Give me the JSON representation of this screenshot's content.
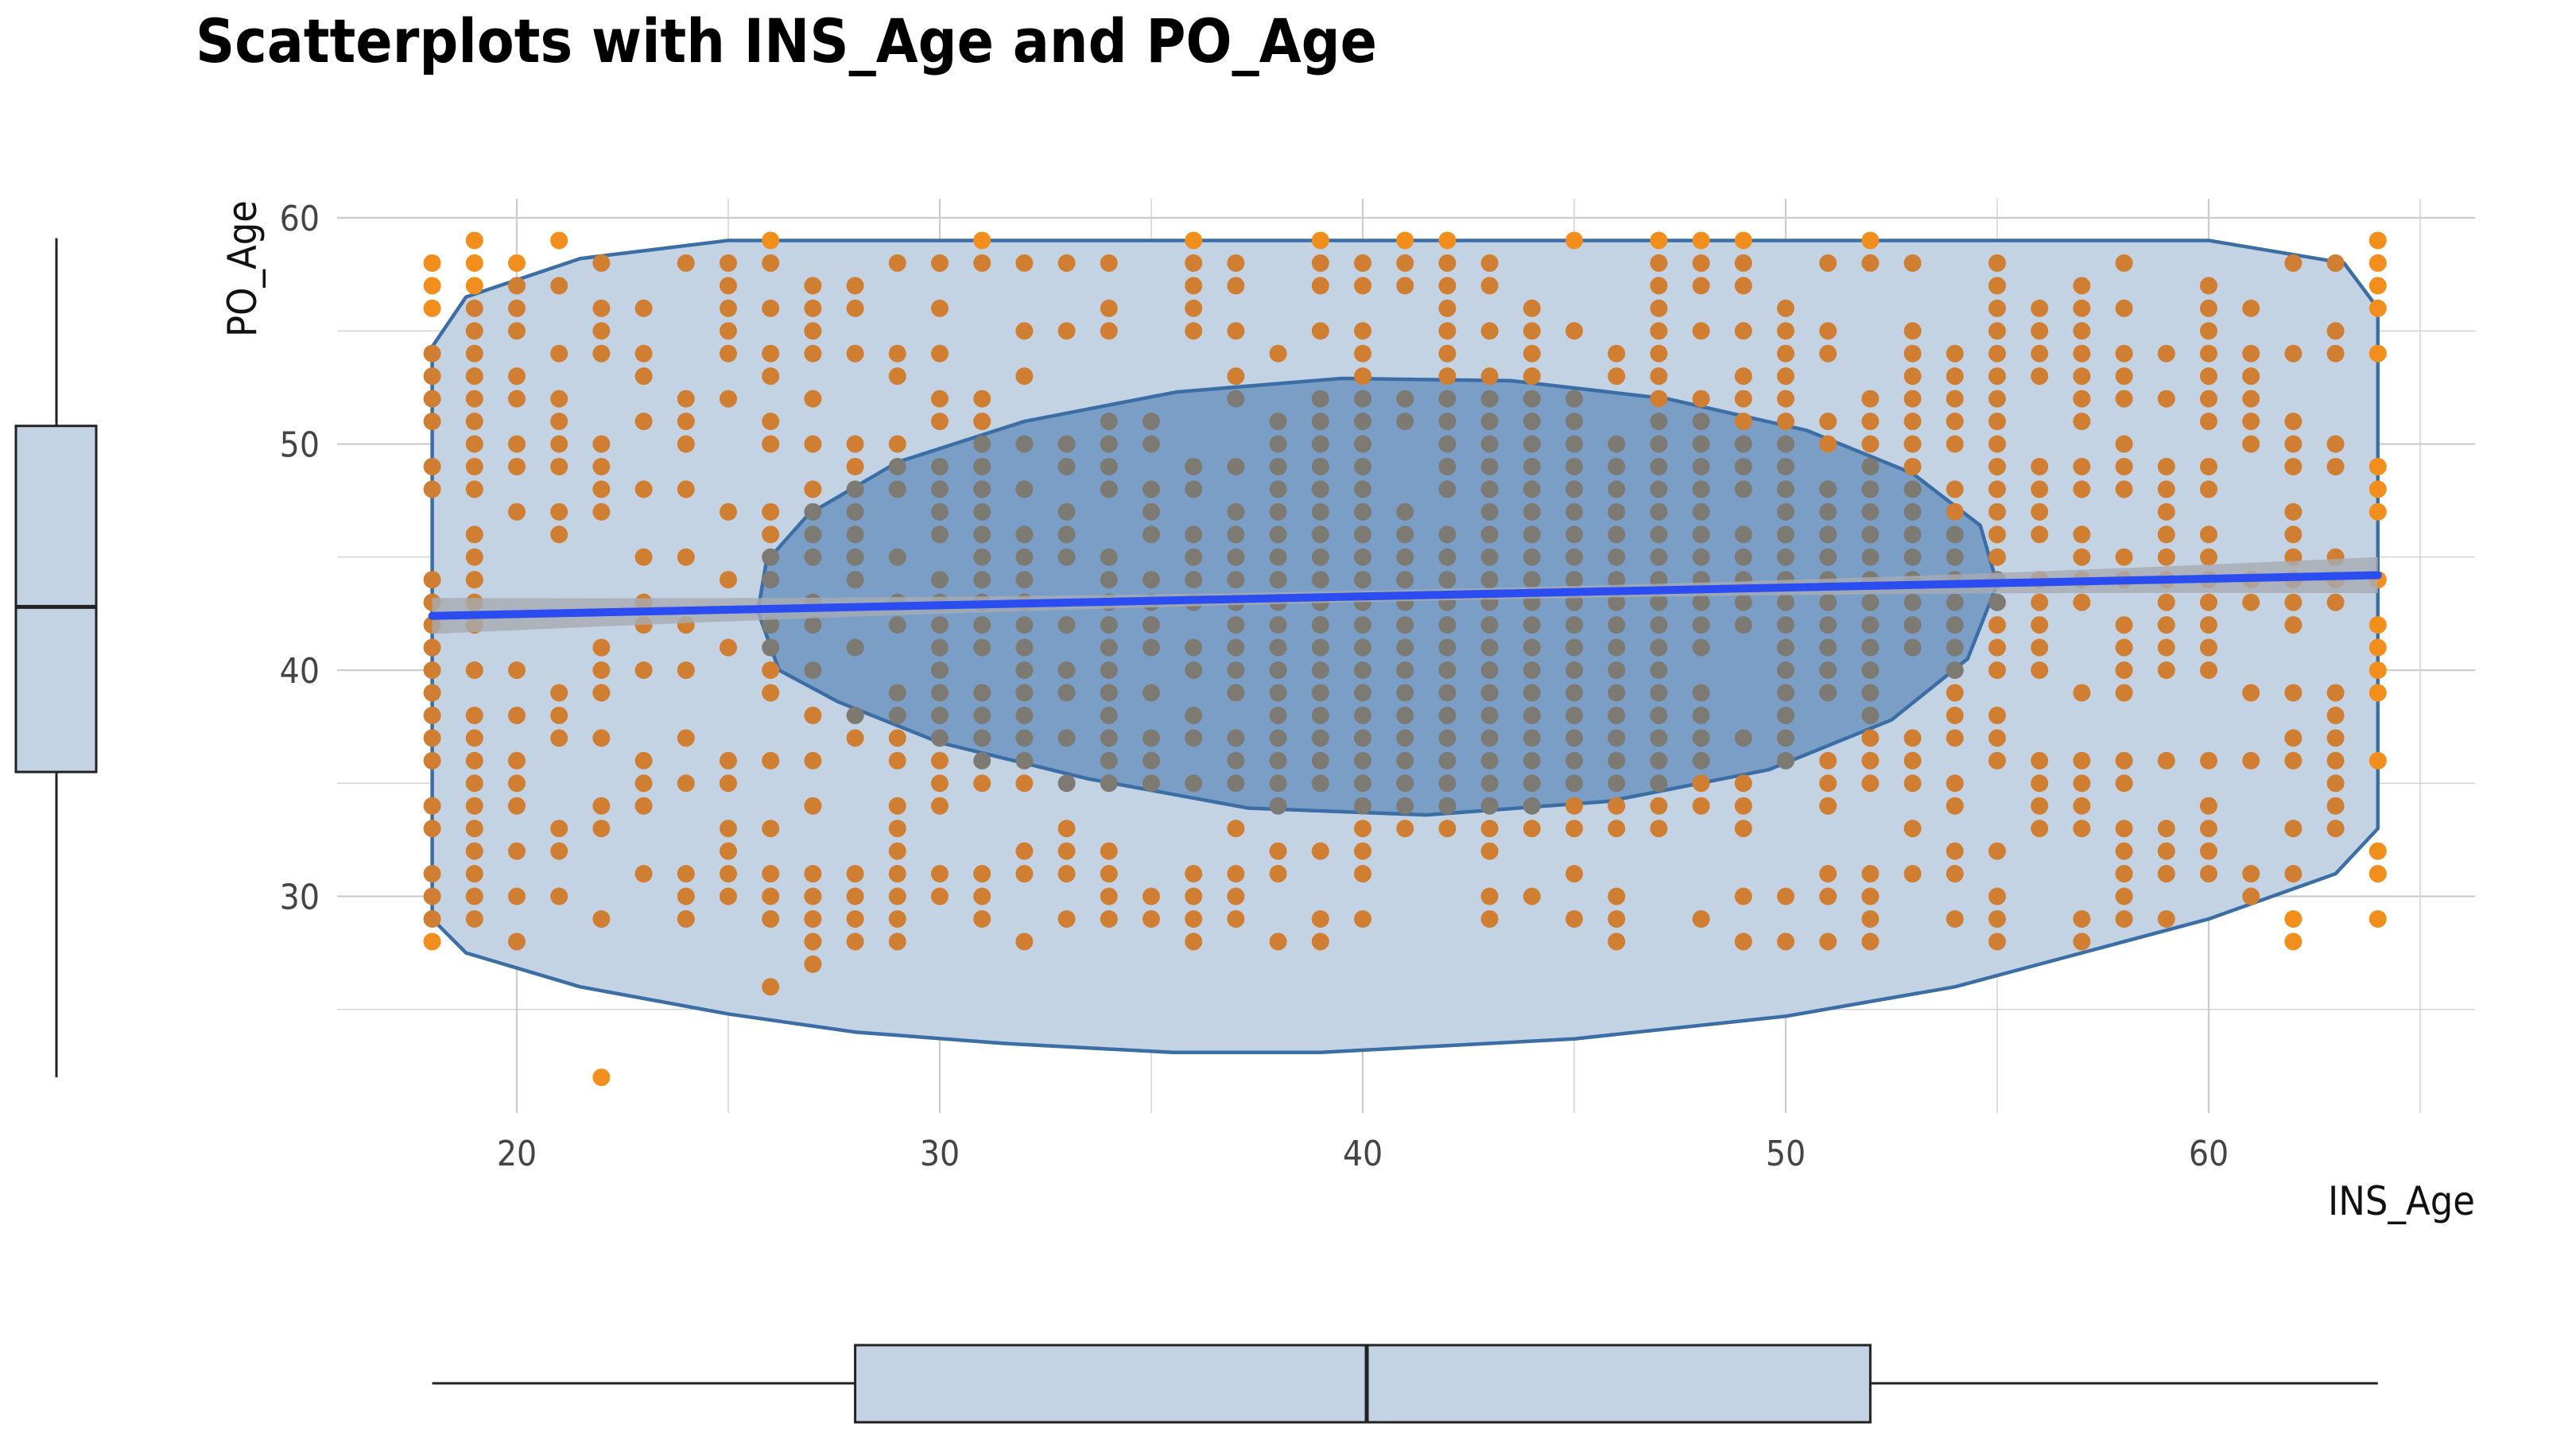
{
  "chart_data": {
    "type": "scatter",
    "title": "Scatterplots with INS_Age and PO_Age",
    "xlabel": "INS_Age",
    "ylabel": "PO_Age",
    "xlim": [
      15.5,
      66
    ],
    "ylim": [
      20,
      61
    ],
    "x_ticks": [
      20,
      30,
      40,
      50,
      60
    ],
    "y_ticks": [
      30,
      40,
      50,
      60
    ],
    "grid": true,
    "colors": {
      "point": "#f28e1c",
      "point_inside_hull": "#d07e32",
      "point_inside_ellipse": "#7d7a74",
      "hull_fill": "#c4d3e4",
      "hull_stroke": "#3b6ea5",
      "ellipse_fill": "#7a9ec5",
      "regression": "#2a4cf0",
      "confidence_band": "#a6abb3",
      "boxplot_fill": "#c4d3e4",
      "boxplot_stroke": "#222222",
      "grid": "#cccccc"
    },
    "columns": [
      {
        "x": 18,
        "y": [
          28,
          29,
          30,
          31,
          33,
          34,
          36,
          37,
          38,
          39,
          40,
          41,
          42,
          43,
          44,
          48,
          49,
          51,
          52,
          53,
          54,
          56,
          57,
          58
        ]
      },
      {
        "x": 19,
        "y": [
          29,
          30,
          31,
          32,
          33,
          34,
          35,
          36,
          37,
          38,
          40,
          42,
          43,
          44,
          45,
          46,
          48,
          49,
          50,
          51,
          52,
          53,
          54,
          55,
          56,
          57,
          58,
          59
        ]
      },
      {
        "x": 20,
        "y": [
          28,
          30,
          32,
          34,
          35,
          36,
          38,
          40,
          47,
          49,
          50,
          52,
          53,
          55,
          56,
          57,
          58
        ]
      },
      {
        "x": 21,
        "y": [
          30,
          32,
          33,
          37,
          38,
          39,
          46,
          47,
          49,
          50,
          51,
          52,
          54,
          57,
          59
        ]
      },
      {
        "x": 22,
        "y": [
          22,
          29,
          33,
          34,
          37,
          39,
          40,
          41,
          47,
          48,
          49,
          50,
          54,
          55,
          56,
          58
        ]
      },
      {
        "x": 23,
        "y": [
          31,
          34,
          35,
          36,
          40,
          42,
          43,
          45,
          48,
          51,
          53,
          54,
          56
        ]
      },
      {
        "x": 24,
        "y": [
          29,
          30,
          31,
          35,
          37,
          40,
          42,
          45,
          48,
          50,
          51,
          52,
          58
        ]
      },
      {
        "x": 25,
        "y": [
          30,
          31,
          32,
          33,
          35,
          36,
          41,
          44,
          47,
          52,
          54,
          55,
          56,
          57,
          58
        ]
      },
      {
        "x": 26,
        "y": [
          26,
          29,
          30,
          31,
          33,
          36,
          39,
          40,
          41,
          42,
          44,
          45,
          46,
          47,
          50,
          51,
          53,
          54,
          56,
          58,
          59
        ]
      },
      {
        "x": 27,
        "y": [
          27,
          28,
          29,
          30,
          31,
          34,
          36,
          38,
          40,
          42,
          43,
          45,
          46,
          47,
          48,
          50,
          52,
          54,
          55,
          56,
          57
        ]
      },
      {
        "x": 28,
        "y": [
          28,
          29,
          30,
          31,
          37,
          38,
          41,
          44,
          45,
          46,
          47,
          48,
          49,
          50,
          54,
          56,
          57
        ]
      },
      {
        "x": 29,
        "y": [
          28,
          29,
          30,
          31,
          32,
          33,
          34,
          36,
          37,
          38,
          39,
          42,
          43,
          45,
          48,
          49,
          50,
          53,
          54,
          58
        ]
      },
      {
        "x": 30,
        "y": [
          30,
          31,
          34,
          35,
          36,
          37,
          38,
          39,
          40,
          41,
          42,
          43,
          44,
          46,
          47,
          48,
          49,
          51,
          52,
          54,
          56,
          58
        ]
      },
      {
        "x": 31,
        "y": [
          29,
          30,
          31,
          35,
          36,
          37,
          38,
          39,
          41,
          42,
          43,
          44,
          45,
          46,
          47,
          48,
          49,
          50,
          51,
          52,
          58,
          59
        ]
      },
      {
        "x": 32,
        "y": [
          28,
          31,
          32,
          35,
          36,
          37,
          38,
          39,
          40,
          41,
          42,
          43,
          44,
          45,
          46,
          48,
          50,
          53,
          55,
          58
        ]
      },
      {
        "x": 33,
        "y": [
          29,
          31,
          32,
          33,
          35,
          37,
          39,
          40,
          42,
          45,
          46,
          47,
          49,
          50,
          55,
          58
        ]
      },
      {
        "x": 34,
        "y": [
          29,
          30,
          31,
          32,
          35,
          36,
          37,
          38,
          39,
          40,
          41,
          42,
          43,
          44,
          45,
          48,
          49,
          50,
          51,
          55,
          56,
          58
        ]
      },
      {
        "x": 35,
        "y": [
          29,
          30,
          35,
          36,
          37,
          39,
          41,
          42,
          43,
          44,
          46,
          47,
          48,
          50,
          51
        ]
      },
      {
        "x": 36,
        "y": [
          28,
          29,
          30,
          31,
          35,
          37,
          38,
          40,
          41,
          43,
          44,
          45,
          46,
          48,
          49,
          55,
          56,
          57,
          58,
          59
        ]
      },
      {
        "x": 37,
        "y": [
          29,
          30,
          31,
          33,
          35,
          36,
          37,
          39,
          40,
          41,
          42,
          43,
          44,
          45,
          46,
          47,
          49,
          52,
          53,
          55,
          57,
          58
        ]
      },
      {
        "x": 38,
        "y": [
          28,
          31,
          32,
          34,
          35,
          36,
          37,
          38,
          39,
          40,
          41,
          42,
          43,
          44,
          45,
          46,
          47,
          48,
          49,
          50,
          51,
          54
        ]
      },
      {
        "x": 39,
        "y": [
          28,
          29,
          32,
          35,
          36,
          37,
          38,
          39,
          40,
          41,
          42,
          43,
          44,
          45,
          46,
          47,
          48,
          49,
          50,
          51,
          52,
          55,
          57,
          58,
          59
        ]
      },
      {
        "x": 40,
        "y": [
          29,
          31,
          32,
          33,
          34,
          35,
          36,
          37,
          38,
          39,
          40,
          41,
          42,
          43,
          44,
          45,
          46,
          47,
          48,
          49,
          50,
          51,
          52,
          53,
          54,
          55,
          57,
          58
        ]
      },
      {
        "x": 41,
        "y": [
          33,
          34,
          35,
          36,
          37,
          38,
          39,
          40,
          41,
          42,
          43,
          44,
          45,
          46,
          47,
          51,
          52,
          57,
          58,
          59
        ]
      },
      {
        "x": 42,
        "y": [
          33,
          34,
          35,
          36,
          37,
          38,
          39,
          40,
          41,
          42,
          43,
          44,
          45,
          46,
          48,
          49,
          50,
          51,
          52,
          53,
          54,
          55,
          56,
          57,
          58,
          59
        ]
      },
      {
        "x": 43,
        "y": [
          29,
          30,
          32,
          33,
          34,
          35,
          36,
          37,
          38,
          39,
          40,
          41,
          42,
          43,
          44,
          45,
          46,
          47,
          48,
          49,
          50,
          51,
          52,
          53,
          55,
          57,
          58
        ]
      },
      {
        "x": 44,
        "y": [
          30,
          33,
          34,
          35,
          36,
          37,
          38,
          39,
          40,
          41,
          42,
          43,
          44,
          45,
          46,
          47,
          48,
          49,
          50,
          51,
          52,
          53,
          54,
          55,
          56
        ]
      },
      {
        "x": 45,
        "y": [
          29,
          31,
          33,
          34,
          35,
          36,
          37,
          38,
          39,
          40,
          41,
          42,
          43,
          44,
          45,
          46,
          47,
          48,
          49,
          50,
          51,
          52,
          55,
          59
        ]
      },
      {
        "x": 46,
        "y": [
          28,
          29,
          30,
          33,
          34,
          35,
          36,
          37,
          38,
          39,
          40,
          41,
          42,
          43,
          44,
          45,
          46,
          47,
          48,
          49,
          50,
          53,
          54
        ]
      },
      {
        "x": 47,
        "y": [
          33,
          34,
          35,
          36,
          37,
          38,
          39,
          40,
          41,
          42,
          43,
          44,
          45,
          46,
          47,
          48,
          49,
          50,
          51,
          52,
          53,
          54,
          55,
          56,
          57,
          58,
          59
        ]
      },
      {
        "x": 48,
        "y": [
          29,
          34,
          35,
          36,
          37,
          38,
          39,
          41,
          42,
          43,
          44,
          45,
          46,
          47,
          48,
          49,
          50,
          51,
          52,
          55,
          57,
          58,
          59
        ]
      },
      {
        "x": 49,
        "y": [
          28,
          30,
          33,
          34,
          35,
          37,
          42,
          43,
          44,
          45,
          46,
          48,
          49,
          50,
          51,
          52,
          53,
          55,
          57,
          58,
          59
        ]
      },
      {
        "x": 50,
        "y": [
          28,
          30,
          36,
          37,
          38,
          39,
          40,
          41,
          42,
          43,
          44,
          45,
          46,
          47,
          48,
          49,
          50,
          51,
          52,
          53,
          54,
          55,
          56
        ]
      },
      {
        "x": 51,
        "y": [
          28,
          30,
          31,
          34,
          35,
          36,
          39,
          40,
          41,
          42,
          43,
          44,
          45,
          46,
          47,
          48,
          50,
          51,
          54,
          55,
          58
        ]
      },
      {
        "x": 52,
        "y": [
          28,
          29,
          30,
          31,
          35,
          36,
          37,
          38,
          39,
          40,
          41,
          42,
          43,
          44,
          45,
          46,
          47,
          48,
          49,
          50,
          51,
          52,
          58,
          59
        ]
      },
      {
        "x": 53,
        "y": [
          31,
          33,
          35,
          36,
          37,
          41,
          42,
          43,
          44,
          45,
          46,
          47,
          48,
          49,
          50,
          51,
          52,
          53,
          54,
          55,
          58
        ]
      },
      {
        "x": 54,
        "y": [
          29,
          31,
          32,
          34,
          35,
          37,
          38,
          39,
          40,
          41,
          42,
          43,
          44,
          45,
          46,
          47,
          48,
          50,
          51,
          52,
          53,
          54
        ]
      },
      {
        "x": 55,
        "y": [
          28,
          29,
          30,
          32,
          36,
          37,
          38,
          40,
          41,
          42,
          43,
          44,
          45,
          46,
          47,
          48,
          49,
          50,
          51,
          52,
          53,
          54,
          55,
          56,
          57,
          58
        ]
      },
      {
        "x": 56,
        "y": [
          33,
          34,
          35,
          36,
          40,
          41,
          42,
          43,
          44,
          46,
          47,
          48,
          49,
          53,
          54,
          55,
          56
        ]
      },
      {
        "x": 57,
        "y": [
          28,
          29,
          33,
          34,
          35,
          36,
          39,
          43,
          44,
          45,
          46,
          48,
          49,
          51,
          52,
          53,
          54,
          55,
          56,
          57
        ]
      },
      {
        "x": 58,
        "y": [
          29,
          30,
          31,
          32,
          33,
          35,
          36,
          39,
          40,
          41,
          42,
          44,
          45,
          48,
          49,
          50,
          52,
          53,
          54,
          56,
          58
        ]
      },
      {
        "x": 59,
        "y": [
          29,
          31,
          32,
          33,
          36,
          40,
          41,
          42,
          43,
          44,
          45,
          46,
          47,
          48,
          49,
          52,
          54
        ]
      },
      {
        "x": 60,
        "y": [
          31,
          32,
          33,
          34,
          36,
          40,
          41,
          42,
          43,
          44,
          45,
          46,
          48,
          49,
          51,
          52,
          53,
          54,
          55,
          56,
          57
        ]
      },
      {
        "x": 61,
        "y": [
          30,
          31,
          36,
          39,
          43,
          44,
          50,
          51,
          52,
          53,
          54,
          56
        ]
      },
      {
        "x": 62,
        "y": [
          28,
          29,
          31,
          33,
          36,
          37,
          39,
          42,
          43,
          44,
          45,
          46,
          47,
          49,
          50,
          51,
          54,
          58
        ]
      },
      {
        "x": 63,
        "y": [
          33,
          34,
          35,
          36,
          37,
          38,
          39,
          43,
          44,
          45,
          49,
          50,
          54,
          55,
          58
        ]
      },
      {
        "x": 64,
        "y": [
          29,
          31,
          32,
          36,
          39,
          40,
          41,
          42,
          44,
          47,
          48,
          49,
          54,
          56,
          57,
          58,
          59
        ]
      }
    ],
    "hull": [
      [
        18,
        54.3
      ],
      [
        18.8,
        56.5
      ],
      [
        21.5,
        58.2
      ],
      [
        25,
        59
      ],
      [
        60,
        59
      ],
      [
        63.2,
        58
      ],
      [
        64,
        56
      ],
      [
        64,
        33
      ],
      [
        63,
        31
      ],
      [
        60,
        29
      ],
      [
        57,
        27.5
      ],
      [
        54,
        26
      ],
      [
        50,
        24.7
      ],
      [
        45,
        23.7
      ],
      [
        39,
        23.1
      ],
      [
        35.5,
        23.1
      ],
      [
        31.5,
        23.5
      ],
      [
        28,
        24
      ],
      [
        25,
        24.8
      ],
      [
        21.5,
        26
      ],
      [
        18.8,
        27.5
      ],
      [
        18,
        29
      ]
    ],
    "ellipse": {
      "cx": 40.3,
      "cy": 43.2,
      "rx": 14.8,
      "ry": 9.6,
      "points": [
        [
          25.7,
          42.6
        ],
        [
          26.2,
          40.0
        ],
        [
          27.6,
          38.6
        ],
        [
          30.0,
          36.8
        ],
        [
          33.5,
          35.2
        ],
        [
          37.3,
          33.9
        ],
        [
          41.5,
          33.6
        ],
        [
          45.8,
          34.2
        ],
        [
          49.6,
          35.6
        ],
        [
          52.5,
          37.8
        ],
        [
          54.3,
          40.5
        ],
        [
          55.0,
          43.8
        ],
        [
          54.6,
          46.4
        ],
        [
          53.0,
          48.7
        ],
        [
          50.5,
          50.6
        ],
        [
          47.2,
          52.0
        ],
        [
          43.5,
          52.8
        ],
        [
          39.5,
          52.9
        ],
        [
          35.6,
          52.3
        ],
        [
          32.0,
          51.0
        ],
        [
          29.0,
          49.2
        ],
        [
          26.9,
          46.9
        ],
        [
          25.9,
          44.8
        ]
      ]
    },
    "regression": {
      "x": [
        18,
        64
      ],
      "y": [
        42.4,
        44.2
      ],
      "band_halfwidth_ends": 0.8,
      "band_halfwidth_mid": 0.25
    },
    "boxplot_x": {
      "min": 18,
      "q1": 28,
      "median": 40,
      "q3": 52,
      "max": 64
    },
    "boxplot_y": {
      "min": 22,
      "q1": 35.5,
      "median": 42.8,
      "q3": 50.8,
      "max": 59.1
    }
  }
}
